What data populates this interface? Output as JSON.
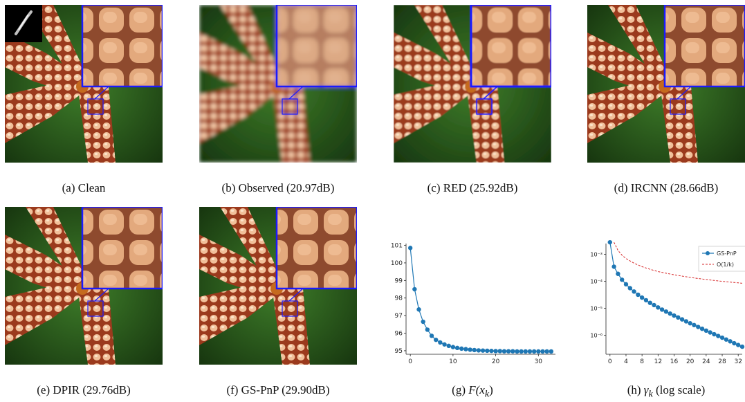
{
  "figure": {
    "captions": {
      "a": "(a) Clean",
      "b": "(b) Observed (20.97dB)",
      "c": "(c) RED (25.92dB)",
      "d": "(d) IRCNN (28.66dB)",
      "e": "(e) DPIR (29.76dB)",
      "f": "(f) GS-PnP (29.90dB)",
      "g_prefix": "(g) ",
      "g_math": "F(x",
      "g_sub": "k",
      "g_close": ")",
      "h_prefix": "(h) ",
      "h_math": "γ",
      "h_sub": "k",
      "h_suffix": " (log scale)"
    }
  },
  "chart_data": [
    {
      "type": "line",
      "title": "",
      "xlabel": "",
      "ylabel": "",
      "xlim": [
        -1,
        34
      ],
      "ylim": [
        94.8,
        101.1
      ],
      "xticks": [
        0,
        10,
        20,
        30
      ],
      "yticks": [
        95,
        96,
        97,
        98,
        99,
        100,
        101
      ],
      "color": "#1f77b4",
      "series": [
        {
          "x": [
            0,
            1,
            2,
            3,
            4,
            5,
            6,
            7,
            8,
            9,
            10,
            11,
            12,
            13,
            14,
            15,
            16,
            17,
            18,
            19,
            20,
            21,
            22,
            23,
            24,
            25,
            26,
            27,
            28,
            29,
            30,
            31,
            32,
            33
          ],
          "values": [
            100.85,
            98.5,
            97.35,
            96.65,
            96.2,
            95.85,
            95.62,
            95.47,
            95.36,
            95.28,
            95.21,
            95.16,
            95.12,
            95.09,
            95.06,
            95.04,
            95.02,
            95.01,
            95.0,
            94.99,
            94.98,
            94.98,
            94.97,
            94.97,
            94.97,
            94.96,
            94.96,
            94.96,
            94.96,
            94.96,
            94.96,
            94.96,
            94.96,
            94.96
          ]
        }
      ]
    },
    {
      "type": "line",
      "title": "",
      "xlabel": "",
      "ylabel": "",
      "yscale": "log",
      "xlim": [
        -1,
        33
      ],
      "ylim_log10": [
        -6.7,
        -2.6
      ],
      "xticks": [
        0,
        4,
        8,
        12,
        16,
        20,
        24,
        28,
        32
      ],
      "yticks": [
        "10⁻³",
        "10⁻⁴",
        "10⁻⁵",
        "10⁻⁶"
      ],
      "legend": "top-right",
      "series": [
        {
          "name": "GS-PnP",
          "color": "#1f77b4",
          "style": "solid-dots",
          "x": [
            0,
            1,
            2,
            3,
            4,
            5,
            6,
            7,
            8,
            9,
            10,
            11,
            12,
            13,
            14,
            15,
            16,
            17,
            18,
            19,
            20,
            21,
            22,
            23,
            24,
            25,
            26,
            27,
            28,
            29,
            30,
            31,
            32,
            33
          ],
          "values": [
            0.0028,
            0.00035,
            0.00019,
            0.000115,
            7.8e-05,
            5.6e-05,
            4.2e-05,
            3.2e-05,
            2.5e-05,
            2e-05,
            1.6e-05,
            1.32e-05,
            1.08e-05,
            9e-06,
            7.6e-06,
            6.4e-06,
            5.4e-06,
            4.6e-06,
            3.9e-06,
            3.3e-06,
            2.8e-06,
            2.4e-06,
            2.05e-06,
            1.75e-06,
            1.5e-06,
            1.28e-06,
            1.1e-06,
            9.5e-07,
            8.2e-07,
            7e-07,
            6e-07,
            5.1e-07,
            4.4e-07,
            3.8e-07
          ]
        },
        {
          "name": "O(1/k)",
          "color": "#d62728",
          "style": "dashed",
          "x": [
            1,
            2,
            3,
            4,
            6,
            8,
            10,
            12,
            16,
            20,
            24,
            28,
            32,
            33
          ],
          "values": [
            0.0028,
            0.0014,
            0.00093,
            0.0007,
            0.00047,
            0.00035,
            0.00028,
            0.00023,
            0.000175,
            0.00014,
            0.000117,
            0.0001,
            8.8e-05,
            8.5e-05
          ]
        }
      ]
    }
  ]
}
